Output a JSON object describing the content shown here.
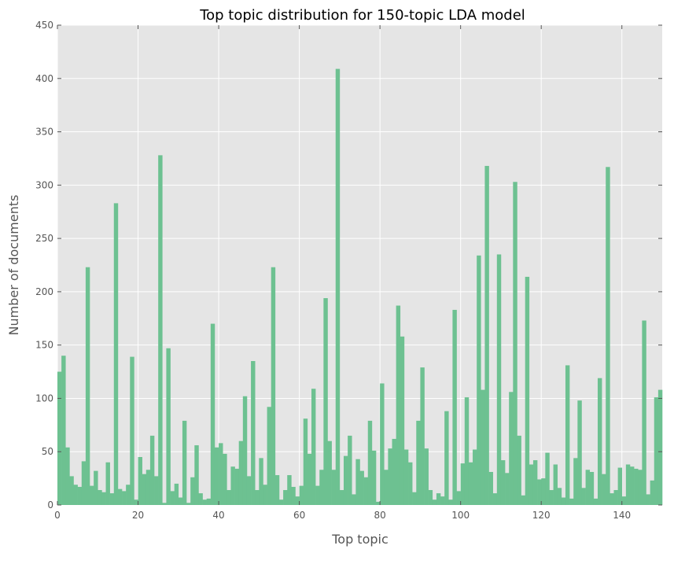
{
  "chart_data": {
    "type": "bar",
    "title": "Top topic distribution for 150-topic LDA model",
    "xlabel": "Top topic",
    "ylabel": "Number of documents",
    "xlim": [
      0,
      150
    ],
    "ylim": [
      0,
      450
    ],
    "xticks": [
      0,
      20,
      40,
      60,
      80,
      100,
      120,
      140
    ],
    "yticks": [
      0,
      50,
      100,
      150,
      200,
      250,
      300,
      350,
      400,
      450
    ],
    "grid": true,
    "bar_color": "#6dc191",
    "background_color": "#e5e5e5",
    "values": [
      125,
      140,
      54,
      27,
      19,
      17,
      41,
      223,
      18,
      32,
      14,
      12,
      40,
      11,
      283,
      15,
      13,
      19,
      139,
      5,
      45,
      29,
      33,
      65,
      27,
      328,
      2,
      147,
      13,
      20,
      7,
      79,
      2,
      26,
      56,
      11,
      5,
      6,
      170,
      54,
      58,
      48,
      14,
      36,
      34,
      60,
      102,
      27,
      135,
      14,
      44,
      19,
      92,
      223,
      28,
      5,
      14,
      28,
      17,
      8,
      18,
      81,
      48,
      109,
      18,
      33,
      194,
      60,
      33,
      409,
      14,
      46,
      65,
      10,
      43,
      32,
      26,
      79,
      51,
      3,
      114,
      33,
      53,
      62,
      187,
      158,
      52,
      40,
      12,
      79,
      129,
      53,
      14,
      5,
      11,
      8,
      88,
      5,
      183,
      13,
      39,
      101,
      40,
      52,
      234,
      108,
      318,
      31,
      11,
      235,
      42,
      30,
      106,
      303,
      65,
      9,
      214,
      38,
      42,
      24,
      25,
      49,
      14,
      38,
      16,
      7,
      131,
      6,
      44,
      98,
      16,
      33,
      31,
      6,
      119,
      29,
      317,
      11,
      14,
      35,
      8,
      38,
      36,
      34,
      33,
      173,
      10,
      23,
      101,
      108
    ]
  }
}
